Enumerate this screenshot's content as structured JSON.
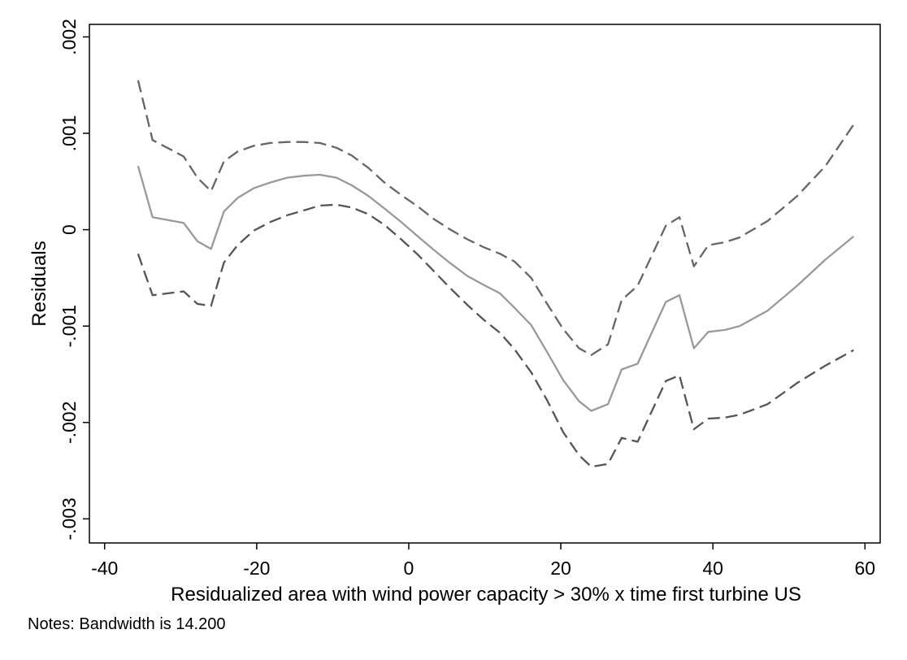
{
  "chart_data": {
    "type": "line",
    "xlabel": "Residualized area with wind power capacity > 30% x time first turbine US",
    "ylabel": "Residuals",
    "note": "Notes: Bandwidth is 14.200",
    "xlim": [
      -42,
      62
    ],
    "ylim": [
      -0.00325,
      0.00213
    ],
    "x_ticks": [
      -40,
      -20,
      0,
      20,
      40,
      60
    ],
    "x_tick_labels": [
      "-40",
      "-20",
      "0",
      "20",
      "40",
      "60"
    ],
    "y_ticks": [
      0.002,
      0.001,
      0,
      -0.001,
      -0.002,
      -0.003
    ],
    "y_tick_labels": [
      ".002",
      ".001",
      "0",
      "-.001",
      "-.002",
      "-.003"
    ],
    "grid": false,
    "legend": "none",
    "series": [
      {
        "role": "upper-bound",
        "style": "dashed",
        "color": "#666666",
        "points": [
          [
            -35.6,
            0.00155
          ],
          [
            -33.7,
            0.00093
          ],
          [
            -29.6,
            0.00076
          ],
          [
            -27.8,
            0.00054
          ],
          [
            -26.0,
            0.0004
          ],
          [
            -24.3,
            0.00071
          ],
          [
            -22.5,
            0.00081
          ],
          [
            -20.4,
            0.00087
          ],
          [
            -18.2,
            0.0009
          ],
          [
            -16.0,
            0.00091
          ],
          [
            -13.8,
            0.00091
          ],
          [
            -11.7,
            0.0009
          ],
          [
            -9.5,
            0.00085
          ],
          [
            -7.5,
            0.00077
          ],
          [
            -5.3,
            0.00064
          ],
          [
            -3.2,
            0.00049
          ],
          [
            -1.0,
            0.00036
          ],
          [
            1.2,
            0.00024
          ],
          [
            3.3,
            0.00011
          ],
          [
            5.5,
            0.0
          ],
          [
            7.7,
            -0.0001
          ],
          [
            9.8,
            -0.00018
          ],
          [
            12.0,
            -0.00025
          ],
          [
            13.9,
            -0.00033
          ],
          [
            16.1,
            -0.0005
          ],
          [
            18.2,
            -0.00077
          ],
          [
            20.3,
            -0.00103
          ],
          [
            22.4,
            -0.00123
          ],
          [
            24.0,
            -0.0013
          ],
          [
            26.2,
            -0.00119
          ],
          [
            28.0,
            -0.00073
          ],
          [
            30.1,
            -0.00058
          ],
          [
            33.8,
            4e-05
          ],
          [
            35.6,
            0.00013
          ],
          [
            37.5,
            -0.00038
          ],
          [
            39.4,
            -0.00016
          ],
          [
            41.6,
            -0.00013
          ],
          [
            43.5,
            -8e-05
          ],
          [
            47.2,
            9e-05
          ],
          [
            51.1,
            0.00035
          ],
          [
            54.8,
            0.00066
          ],
          [
            58.5,
            0.00109
          ]
        ]
      },
      {
        "role": "fitted",
        "style": "solid",
        "color": "#999999",
        "points": [
          [
            -35.6,
            0.00066
          ],
          [
            -33.7,
            0.00013
          ],
          [
            -29.6,
            7e-05
          ],
          [
            -27.8,
            -0.00012
          ],
          [
            -26.0,
            -0.0002
          ],
          [
            -24.3,
            0.00019
          ],
          [
            -22.5,
            0.00033
          ],
          [
            -20.4,
            0.00043
          ],
          [
            -18.2,
            0.00049
          ],
          [
            -16.0,
            0.00054
          ],
          [
            -13.8,
            0.00056
          ],
          [
            -11.7,
            0.00057
          ],
          [
            -9.5,
            0.00054
          ],
          [
            -7.5,
            0.00046
          ],
          [
            -5.3,
            0.00035
          ],
          [
            -3.2,
            0.00022
          ],
          [
            -1.0,
            8e-05
          ],
          [
            1.2,
            -7e-05
          ],
          [
            3.3,
            -0.00021
          ],
          [
            5.5,
            -0.00035
          ],
          [
            7.7,
            -0.00048
          ],
          [
            9.8,
            -0.00057
          ],
          [
            12.0,
            -0.00066
          ],
          [
            13.9,
            -0.00081
          ],
          [
            16.1,
            -0.00099
          ],
          [
            18.2,
            -0.00127
          ],
          [
            20.3,
            -0.00156
          ],
          [
            22.4,
            -0.00178
          ],
          [
            24.0,
            -0.00188
          ],
          [
            26.2,
            -0.00181
          ],
          [
            28.0,
            -0.00145
          ],
          [
            30.1,
            -0.00139
          ],
          [
            33.8,
            -0.00075
          ],
          [
            35.6,
            -0.00068
          ],
          [
            37.5,
            -0.00123
          ],
          [
            39.4,
            -0.00106
          ],
          [
            41.6,
            -0.00104
          ],
          [
            43.5,
            -0.001
          ],
          [
            47.2,
            -0.00084
          ],
          [
            51.1,
            -0.00058
          ],
          [
            54.8,
            -0.00031
          ],
          [
            58.5,
            -7e-05
          ]
        ]
      },
      {
        "role": "lower-bound",
        "style": "dashed",
        "color": "#555555",
        "points": [
          [
            -35.6,
            -0.00025
          ],
          [
            -33.7,
            -0.00068
          ],
          [
            -29.6,
            -0.00064
          ],
          [
            -27.8,
            -0.00077
          ],
          [
            -26.0,
            -0.00079
          ],
          [
            -24.3,
            -0.00034
          ],
          [
            -22.5,
            -0.00016
          ],
          [
            -20.4,
            -1e-05
          ],
          [
            -18.2,
            8e-05
          ],
          [
            -16.0,
            0.00015
          ],
          [
            -13.8,
            0.0002
          ],
          [
            -11.7,
            0.00025
          ],
          [
            -9.5,
            0.00026
          ],
          [
            -7.5,
            0.00023
          ],
          [
            -5.3,
            0.00016
          ],
          [
            -3.2,
            5e-05
          ],
          [
            -1.0,
            -0.0001
          ],
          [
            1.2,
            -0.00026
          ],
          [
            3.3,
            -0.00043
          ],
          [
            5.5,
            -0.00061
          ],
          [
            7.7,
            -0.00078
          ],
          [
            9.8,
            -0.00093
          ],
          [
            12.0,
            -0.00107
          ],
          [
            13.9,
            -0.00124
          ],
          [
            16.1,
            -0.00148
          ],
          [
            18.2,
            -0.00177
          ],
          [
            20.3,
            -0.0021
          ],
          [
            22.4,
            -0.00234
          ],
          [
            24.0,
            -0.00246
          ],
          [
            26.2,
            -0.00243
          ],
          [
            28.0,
            -0.00216
          ],
          [
            30.1,
            -0.0022
          ],
          [
            33.8,
            -0.00157
          ],
          [
            35.6,
            -0.00151
          ],
          [
            37.5,
            -0.00207
          ],
          [
            39.4,
            -0.00196
          ],
          [
            41.6,
            -0.00195
          ],
          [
            43.5,
            -0.00192
          ],
          [
            47.2,
            -0.00181
          ],
          [
            51.1,
            -0.00159
          ],
          [
            54.8,
            -0.00141
          ],
          [
            58.5,
            -0.00125
          ]
        ]
      }
    ]
  }
}
